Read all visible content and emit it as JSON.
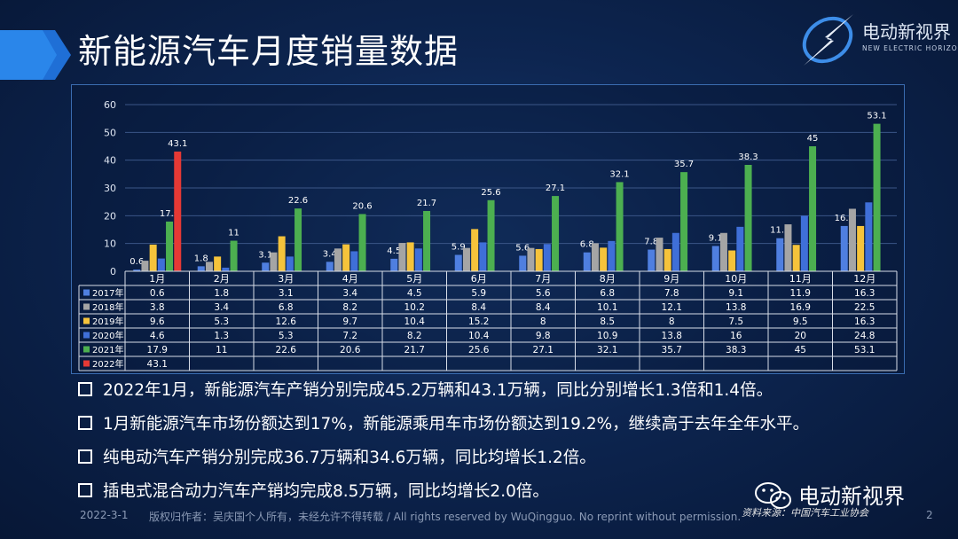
{
  "page": {
    "title": "新能源汽车月度销量数据",
    "logo_name": "电动新视界",
    "logo_sub": "NEW ELECTRIC HORIZON"
  },
  "bullets": [
    "2022年1月，新能源汽车产销分别完成45.2万辆和43.1万辆，同比分别增长1.3倍和1.4倍。",
    "1月新能源汽车市场份额达到17%，新能源乘用车市场份额达到19.2%，继续高于去年全年水平。",
    "纯电动汽车产销分别完成36.7万辆和34.6万辆，同比均增长1.2倍。",
    "插电式混合动力汽车产销均完成8.5万辆，同比均增长2.0倍。"
  ],
  "footer": {
    "date": "2022-3-1",
    "copyright": "版权归作者：吴庆国个人所有，未经允许不得转载 / All rights reserved by WuQingguo.  No reprint without permission.",
    "page_number": "2",
    "wechat_name": "电动新视界",
    "source": "资料来源：中国汽车工业协会"
  },
  "chart_data": {
    "type": "bar",
    "categories": [
      "1月",
      "2月",
      "3月",
      "4月",
      "5月",
      "6月",
      "7月",
      "8月",
      "9月",
      "10月",
      "11月",
      "12月"
    ],
    "yticks": [
      "0",
      "10",
      "20",
      "30",
      "40",
      "50",
      "60"
    ],
    "ylim": [
      0,
      60
    ],
    "grid": true,
    "legend": "table-left",
    "series": [
      {
        "name": "2017年",
        "color": "#4f7fe0",
        "label": true,
        "values": [
          0.6,
          1.8,
          3.1,
          3.4,
          4.5,
          5.9,
          5.6,
          6.8,
          7.8,
          9.1,
          11.9,
          16.3
        ]
      },
      {
        "name": "2018年",
        "color": "#a5a5a5",
        "label": false,
        "values": [
          3.8,
          3.4,
          6.8,
          8.2,
          10.2,
          8.4,
          8.4,
          10.1,
          12.1,
          13.8,
          16.9,
          22.5
        ]
      },
      {
        "name": "2019年",
        "color": "#f5c33b",
        "label": false,
        "values": [
          9.6,
          5.3,
          12.6,
          9.7,
          10.4,
          15.2,
          8,
          8.5,
          8,
          7.5,
          9.5,
          16.3
        ]
      },
      {
        "name": "2020年",
        "color": "#3f6fd8",
        "label": false,
        "values": [
          4.6,
          1.3,
          5.3,
          7.2,
          8.2,
          10.4,
          9.8,
          10.9,
          13.8,
          16,
          20,
          24.8
        ]
      },
      {
        "name": "2021年",
        "color": "#4caf50",
        "label": true,
        "values": [
          17.9,
          11,
          22.6,
          20.6,
          21.7,
          25.6,
          27.1,
          32.1,
          35.7,
          38.3,
          45,
          53.1
        ]
      },
      {
        "name": "2022年",
        "color": "#e53935",
        "label": true,
        "values": [
          43.1,
          null,
          null,
          null,
          null,
          null,
          null,
          null,
          null,
          null,
          null,
          null
        ]
      }
    ]
  }
}
